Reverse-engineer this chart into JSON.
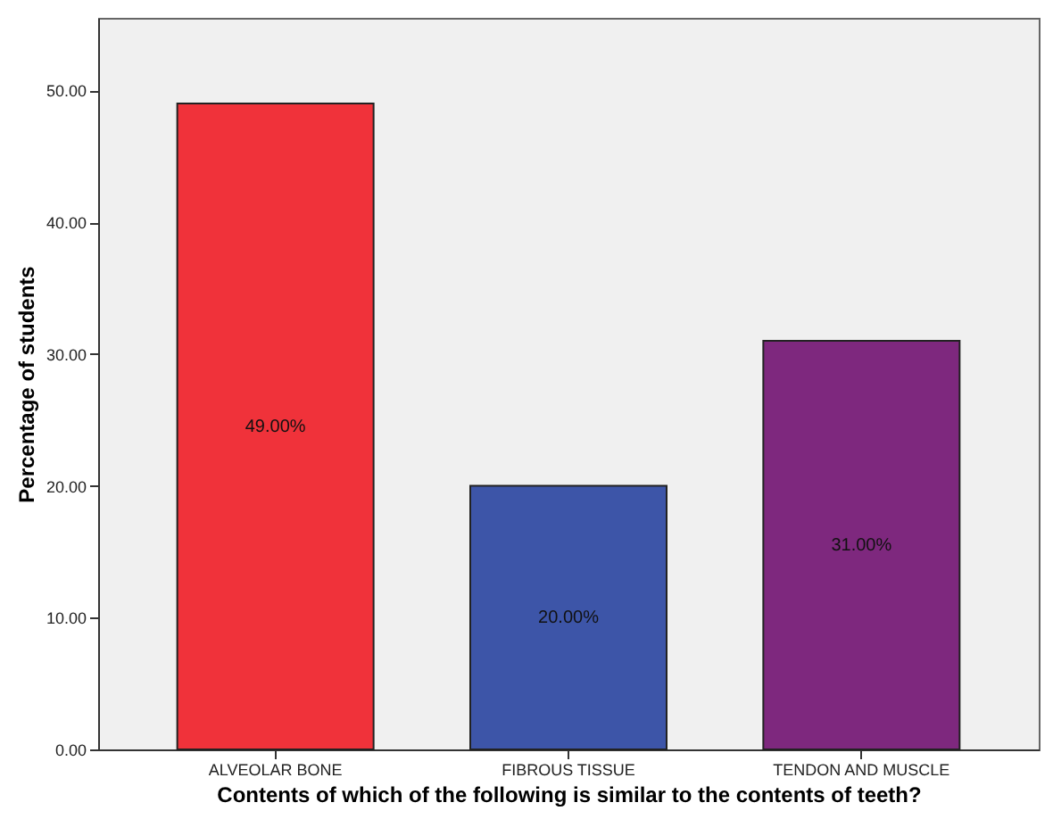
{
  "chart_data": {
    "type": "bar",
    "xlabel": "Contents of which of the following is similar to the contents of teeth?",
    "ylabel": "Percentage of students",
    "categories": [
      "ALVEOLAR BONE",
      "FIBROUS TISSUE",
      "TENDON AND MUSCLE"
    ],
    "values": [
      49,
      20,
      31
    ],
    "colors": [
      "#f0323a",
      "#3d55a8",
      "#7e287e"
    ],
    "value_labels": [
      "49.00%",
      "20.00%",
      "31.00%"
    ],
    "ylim": [
      0,
      55.5
    ],
    "yticks": [
      {
        "value": 0,
        "label": "0.00"
      },
      {
        "value": 10,
        "label": "10.00"
      },
      {
        "value": 20,
        "label": "20.00"
      },
      {
        "value": 30,
        "label": "30.00"
      },
      {
        "value": 40,
        "label": "40.00"
      },
      {
        "value": 50,
        "label": "50.00"
      }
    ],
    "grid": false
  }
}
